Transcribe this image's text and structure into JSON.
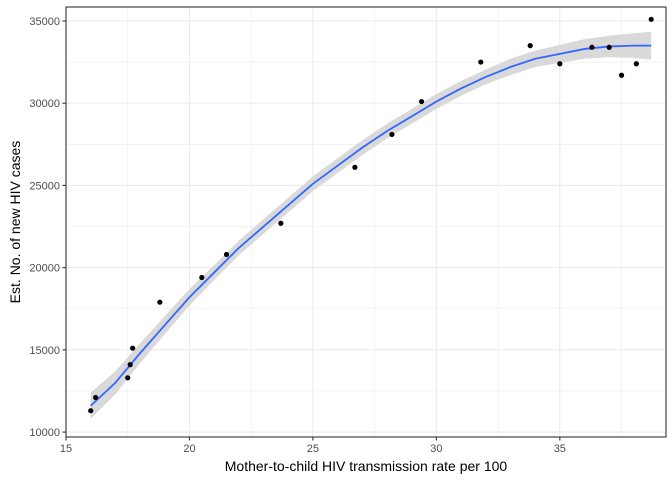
{
  "chart_data": {
    "type": "scatter",
    "xlabel": "Mother-to-child HIV transmission rate per 100",
    "ylabel": "Est. No. of new HIV cases",
    "xlim": [
      15.0,
      39.3
    ],
    "ylim": [
      9700,
      35850
    ],
    "x_ticks": [
      15,
      20,
      25,
      30,
      35
    ],
    "x_tick_labels": [
      "15",
      "20",
      "25",
      "30",
      "35"
    ],
    "y_ticks": [
      10000,
      15000,
      20000,
      25000,
      30000,
      35000
    ],
    "y_tick_labels": [
      "10000",
      "15000",
      "20000",
      "25000",
      "30000",
      "35000"
    ],
    "x_minor_ticks": [
      17.5,
      22.5,
      27.5,
      32.5,
      37.5
    ],
    "y_minor_ticks": [
      12500,
      17500,
      22500,
      27500,
      32500
    ],
    "grid": true,
    "points": [
      {
        "x": 16.0,
        "y": 11300
      },
      {
        "x": 16.2,
        "y": 12100
      },
      {
        "x": 17.5,
        "y": 13300
      },
      {
        "x": 17.6,
        "y": 14100
      },
      {
        "x": 17.7,
        "y": 15100
      },
      {
        "x": 18.8,
        "y": 17900
      },
      {
        "x": 20.5,
        "y": 19400
      },
      {
        "x": 21.5,
        "y": 20800
      },
      {
        "x": 23.7,
        "y": 22700
      },
      {
        "x": 26.7,
        "y": 26100
      },
      {
        "x": 28.2,
        "y": 28100
      },
      {
        "x": 29.4,
        "y": 30100
      },
      {
        "x": 31.8,
        "y": 32500
      },
      {
        "x": 33.8,
        "y": 33500
      },
      {
        "x": 35.0,
        "y": 32400
      },
      {
        "x": 36.3,
        "y": 33400
      },
      {
        "x": 37.0,
        "y": 33400
      },
      {
        "x": 37.5,
        "y": 31700
      },
      {
        "x": 38.1,
        "y": 32400
      },
      {
        "x": 38.7,
        "y": 35100
      }
    ],
    "smooth_line": [
      {
        "x": 16.0,
        "y": 11600
      },
      {
        "x": 17.0,
        "y": 13000
      },
      {
        "x": 18.0,
        "y": 14800
      },
      {
        "x": 19.0,
        "y": 16500
      },
      {
        "x": 20.0,
        "y": 18200
      },
      {
        "x": 21.0,
        "y": 19700
      },
      {
        "x": 22.0,
        "y": 21200
      },
      {
        "x": 23.0,
        "y": 22500
      },
      {
        "x": 24.0,
        "y": 23800
      },
      {
        "x": 25.0,
        "y": 25100
      },
      {
        "x": 26.0,
        "y": 26200
      },
      {
        "x": 27.0,
        "y": 27300
      },
      {
        "x": 28.0,
        "y": 28300
      },
      {
        "x": 29.0,
        "y": 29200
      },
      {
        "x": 30.0,
        "y": 30100
      },
      {
        "x": 31.0,
        "y": 30900
      },
      {
        "x": 32.0,
        "y": 31600
      },
      {
        "x": 33.0,
        "y": 32200
      },
      {
        "x": 34.0,
        "y": 32700
      },
      {
        "x": 35.0,
        "y": 33000
      },
      {
        "x": 36.0,
        "y": 33300
      },
      {
        "x": 37.0,
        "y": 33450
      },
      {
        "x": 38.0,
        "y": 33500
      },
      {
        "x": 38.7,
        "y": 33500
      }
    ],
    "band_width": [
      800,
      700,
      600,
      550,
      500,
      450,
      450,
      450,
      450,
      450,
      450,
      450,
      450,
      450,
      450,
      450,
      450,
      500,
      500,
      550,
      600,
      650,
      750,
      850
    ],
    "colors": {
      "line": "#3366ff",
      "band": "#d9d9d9",
      "point": "#000000",
      "grid": "#ebebeb",
      "panel_border": "#333333"
    }
  }
}
